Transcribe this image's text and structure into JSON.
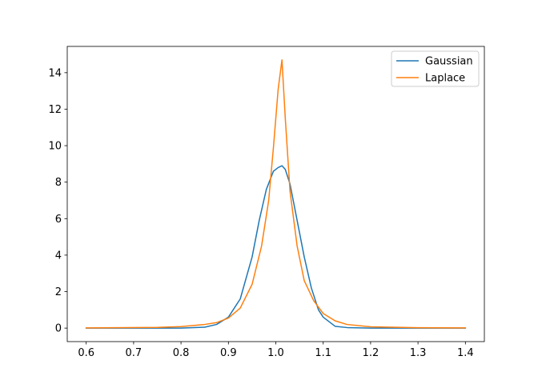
{
  "chart_data": {
    "type": "line",
    "title": "",
    "xlabel": "",
    "ylabel": "",
    "xlim": [
      0.56,
      1.44
    ],
    "ylim": [
      -0.74,
      15.44
    ],
    "x_ticks": [
      0.6,
      0.7,
      0.8,
      0.9,
      1.0,
      1.1,
      1.2,
      1.3,
      1.4
    ],
    "x_tick_labels": [
      "0.6",
      "0.7",
      "0.8",
      "0.9",
      "1.0",
      "1.1",
      "1.2",
      "1.3",
      "1.4"
    ],
    "y_ticks": [
      0,
      2,
      4,
      6,
      8,
      10,
      12,
      14
    ],
    "y_tick_labels": [
      "0",
      "2",
      "4",
      "6",
      "8",
      "10",
      "12",
      "14"
    ],
    "grid": false,
    "legend_position": "top-right",
    "series": [
      {
        "name": "Gaussian",
        "color": "#1f77b4",
        "x": [
          0.6,
          0.8,
          0.85,
          0.875,
          0.9,
          0.925,
          0.95,
          0.965,
          0.98,
          0.995,
          1.005,
          1.013,
          1.02,
          1.03,
          1.045,
          1.06,
          1.075,
          1.09,
          1.1,
          1.125,
          1.15,
          1.2,
          1.4
        ],
        "y": [
          0,
          0,
          0.05,
          0.2,
          0.6,
          1.6,
          3.9,
          5.9,
          7.6,
          8.6,
          8.8,
          8.9,
          8.7,
          7.9,
          5.9,
          3.9,
          2.2,
          1.0,
          0.6,
          0.1,
          0.03,
          0,
          0
        ]
      },
      {
        "name": "Laplace",
        "color": "#ff7f0e",
        "x": [
          0.6,
          0.75,
          0.8,
          0.85,
          0.875,
          0.9,
          0.925,
          0.95,
          0.97,
          0.985,
          0.995,
          1.005,
          1.013,
          1.02,
          1.03,
          1.045,
          1.06,
          1.08,
          1.1,
          1.125,
          1.15,
          1.2,
          1.3,
          1.4
        ],
        "y": [
          0.01,
          0.04,
          0.08,
          0.2,
          0.3,
          0.55,
          1.1,
          2.4,
          4.5,
          7.0,
          9.9,
          13.1,
          14.7,
          11.5,
          7.5,
          4.5,
          2.6,
          1.5,
          0.8,
          0.4,
          0.2,
          0.07,
          0.02,
          0.01
        ]
      }
    ]
  }
}
